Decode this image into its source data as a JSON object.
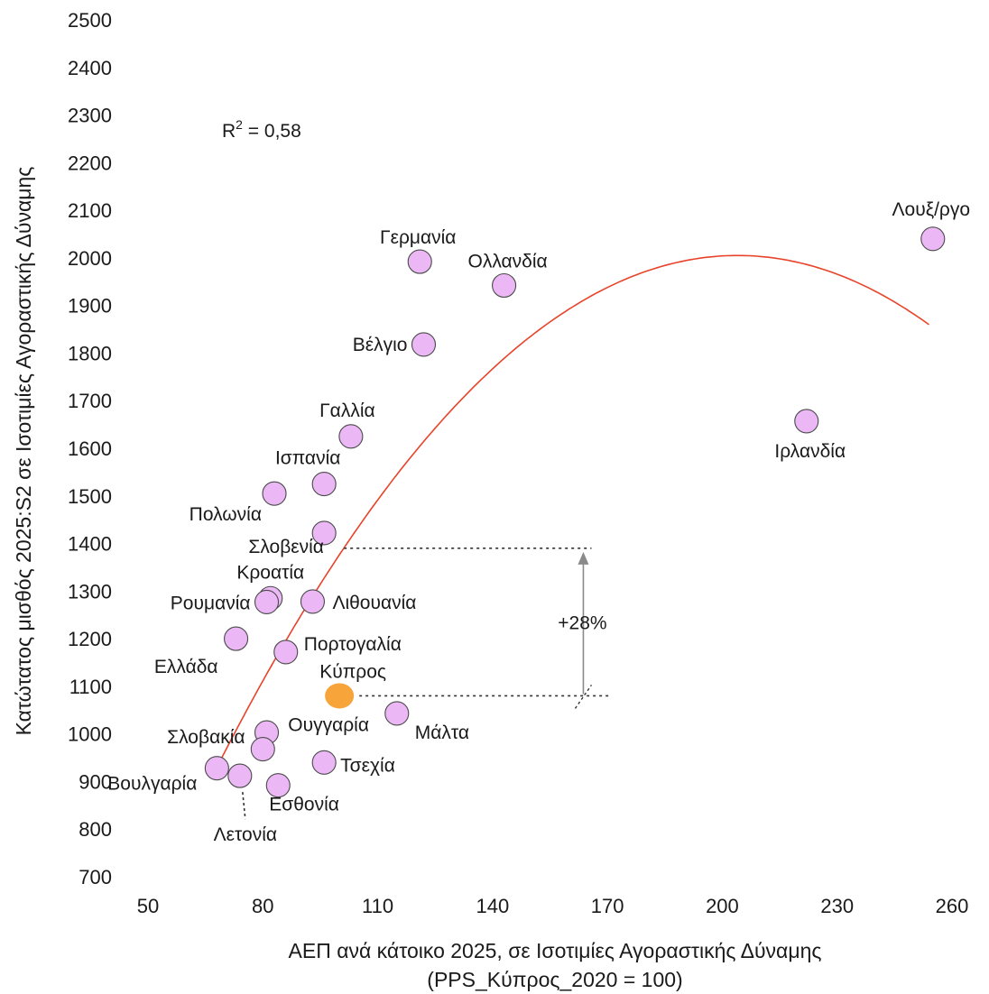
{
  "chart_data": {
    "type": "scatter",
    "xlabel_lines": [
      "ΑΕΠ ανά κάτοικο 2025, σε Ισοτιμίες Αγοραστικής Δύναμης",
      "(PPS_Κύπρος_2020 = 100)"
    ],
    "ylabel": "Κατώτατος μισθός 2025:S2 σε Ισοτιμίες Αγοραστικής  Δύναμης",
    "xlim": [
      50,
      260
    ],
    "ylim": [
      700,
      2500
    ],
    "x_ticks": [
      50,
      80,
      110,
      140,
      170,
      200,
      230,
      260
    ],
    "y_ticks": [
      700,
      800,
      900,
      1000,
      1100,
      1200,
      1300,
      1400,
      1500,
      1600,
      1700,
      1800,
      1900,
      2000,
      2100,
      2200,
      2300,
      2400,
      2500
    ],
    "grid": false,
    "legend": "none",
    "r2_label": {
      "prefix": "R",
      "sup": "2",
      "suffix": " = 0,58"
    },
    "point_color": "#EBB8F5",
    "highlight_color": "#F7A43A",
    "trend_color": "#E8432A",
    "points": [
      {
        "name": "Λουξ/ργο",
        "x": 255,
        "y": 2040
      },
      {
        "name": "Γερμανία",
        "x": 121,
        "y": 1992
      },
      {
        "name": "Ολλανδία",
        "x": 143,
        "y": 1942
      },
      {
        "name": "Βέλγιο",
        "x": 122,
        "y": 1818
      },
      {
        "name": "Ιρλανδία",
        "x": 222,
        "y": 1657
      },
      {
        "name": "Γαλλία",
        "x": 103,
        "y": 1625
      },
      {
        "name": "Ισπανία",
        "x": 96,
        "y": 1525
      },
      {
        "name": "Πολωνία",
        "x": 83,
        "y": 1505
      },
      {
        "name": "Σλοβενία",
        "x": 96,
        "y": 1422
      },
      {
        "name": "Κροατία",
        "x": 82,
        "y": 1285
      },
      {
        "name": "Ρουμανία",
        "x": 81,
        "y": 1277
      },
      {
        "name": "Λιθουανία",
        "x": 93,
        "y": 1278
      },
      {
        "name": "Ελλάδα",
        "x": 73,
        "y": 1200
      },
      {
        "name": "Πορτογαλία",
        "x": 86,
        "y": 1172
      },
      {
        "name": "Κύπρος",
        "x": 100,
        "y": 1080,
        "highlight": true
      },
      {
        "name": "Μάλτα",
        "x": 115,
        "y": 1043
      },
      {
        "name": "Σλοβακία",
        "x": 81,
        "y": 1003
      },
      {
        "name": "Ουγγαρία",
        "x": 80,
        "y": 968
      },
      {
        "name": "Τσεχία",
        "x": 96,
        "y": 940
      },
      {
        "name": "Βουλγαρία",
        "x": 68,
        "y": 928
      },
      {
        "name": "Λετονία",
        "x": 74,
        "y": 912
      },
      {
        "name": "Εσθονία",
        "x": 84,
        "y": 892
      }
    ],
    "trendline": {
      "type": "quadratic",
      "vertex_x": 204,
      "vertex_y": 2005,
      "from_x": 68,
      "to_x": 254
    },
    "annotation": {
      "text": "+28%",
      "from_y": 1080,
      "to_y": 1390,
      "x": 163
    }
  }
}
